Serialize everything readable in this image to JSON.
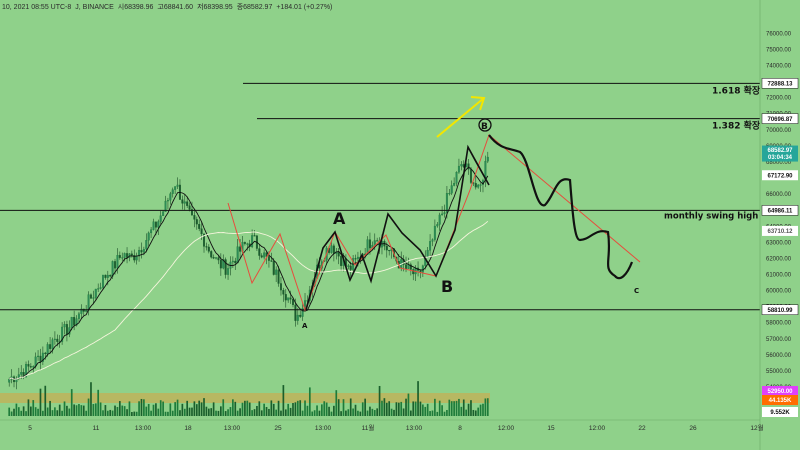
{
  "header": {
    "title_fragment": "J, BINANCE",
    "date_fragment": "10, 2021 08:55 UTC-8",
    "ohlc": [
      "시68398.96",
      "고68841.60",
      "저68398.95",
      "종68582.97",
      "+184.01 (+0.27%)"
    ]
  },
  "chart_data": {
    "type": "candlestick",
    "ylim": [
      52200,
      77200
    ],
    "price_ticks": [
      76000,
      75000,
      74000,
      73000,
      72000,
      71000,
      70000,
      69000,
      68000,
      67000,
      66000,
      65000,
      64000,
      63000,
      62000,
      61000,
      60000,
      59000,
      58000,
      57000,
      56000,
      55000,
      54000,
      53000
    ],
    "price_tick_labels": [
      "76000.00",
      "75000.00",
      "74000.00",
      "73000.00",
      "72000.00",
      "71000.00",
      "70000.00",
      "69000.00",
      "68000.00",
      "67000.00",
      "66000.00",
      "65000.00",
      "64000.00",
      "63000.00",
      "62000.00",
      "61000.00",
      "60000.00",
      "59000.00",
      "58000.00",
      "57000.00",
      "56000.00",
      "55000.00",
      "54000.00",
      "53000.00"
    ],
    "time_labels": [
      "5",
      "11",
      "13:00",
      "18",
      "13:00",
      "25",
      "13:00",
      "11월",
      "13:00",
      "8",
      "12:00",
      "15",
      "12:00",
      "22",
      "26",
      "12월"
    ],
    "horizontal_levels": [
      {
        "price": 72888.13,
        "label": "72888.13",
        "text": "1.618 확장"
      },
      {
        "price": 70696.87,
        "label": "70696.87",
        "text": "1.382 확장"
      },
      {
        "price": 64986.11,
        "label": "64986.11",
        "text": "monthly swing high"
      },
      {
        "price": 58810.99,
        "label": "58810.99",
        "text": ""
      }
    ],
    "price_badges": [
      {
        "label": "68582.97",
        "sub": "03:04:34",
        "price": 68582.97,
        "color": "#26a69a",
        "text_color": "#ffffff"
      },
      {
        "label": "67172.90",
        "price": 67172.9,
        "color": "#ffffff",
        "text_color": "#111111"
      },
      {
        "label": "63710.12",
        "price": 63710.12,
        "color": "#ffffff",
        "text_color": "#555555"
      }
    ],
    "volume_badges": [
      {
        "label": "52950.00",
        "color": "#e040fb",
        "text_color": "#ffffff"
      },
      {
        "label": "44.135K",
        "color": "#ff6d00",
        "text_color": "#ffffff"
      },
      {
        "label": "9.552K",
        "color": "#ffffff",
        "text_color": "#111111"
      }
    ],
    "wave_labels": [
      "A",
      "B",
      "B",
      "A",
      "C"
    ],
    "series": [
      {
        "name": "",
        "close": [
          54500,
          54800,
          55100,
          55600,
          56200,
          56900,
          57300,
          57800,
          58500,
          59200,
          60100,
          60900,
          61500,
          62300,
          62000,
          62600,
          63400,
          64200,
          65300,
          66800,
          65500,
          64300,
          63600,
          62500,
          61700,
          61400,
          62100,
          62800,
          63200,
          62400,
          61600,
          60700,
          59600,
          58300,
          59400,
          60800,
          62200,
          62900,
          62100,
          61300,
          61900,
          62700,
          63400,
          62900,
          62200,
          61600,
          61200,
          60900,
          62100,
          63700,
          65200,
          66600,
          67900,
          67200,
          66000,
          68600
        ]
      }
    ]
  }
}
